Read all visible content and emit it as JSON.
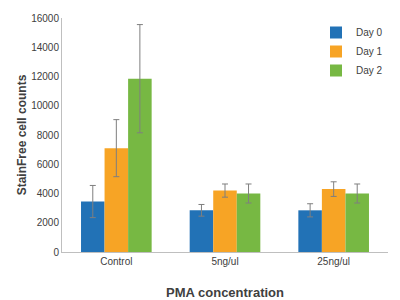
{
  "chart_data": {
    "type": "bar",
    "x_label": "PMA concentration",
    "y_label": "StainFree cell counts",
    "categories": [
      "Control",
      "5ng/ul",
      "25ng/ul"
    ],
    "series": [
      {
        "name": "Day 0",
        "color": "#2272b6",
        "values": [
          3450,
          2850,
          2850
        ],
        "errors": [
          1100,
          400,
          450
        ]
      },
      {
        "name": "Day 1",
        "color": "#f7a425",
        "values": [
          7100,
          4200,
          4300
        ],
        "errors": [
          1950,
          450,
          500
        ]
      },
      {
        "name": "Day 2",
        "color": "#77b843",
        "values": [
          11850,
          4000,
          4000
        ],
        "errors": [
          3700,
          650,
          650
        ]
      }
    ],
    "ylim": [
      0,
      16000
    ],
    "yticks": [
      0,
      2000,
      4000,
      6000,
      8000,
      10000,
      12000,
      14000,
      16000
    ],
    "grid": false,
    "legend": "upper right"
  }
}
